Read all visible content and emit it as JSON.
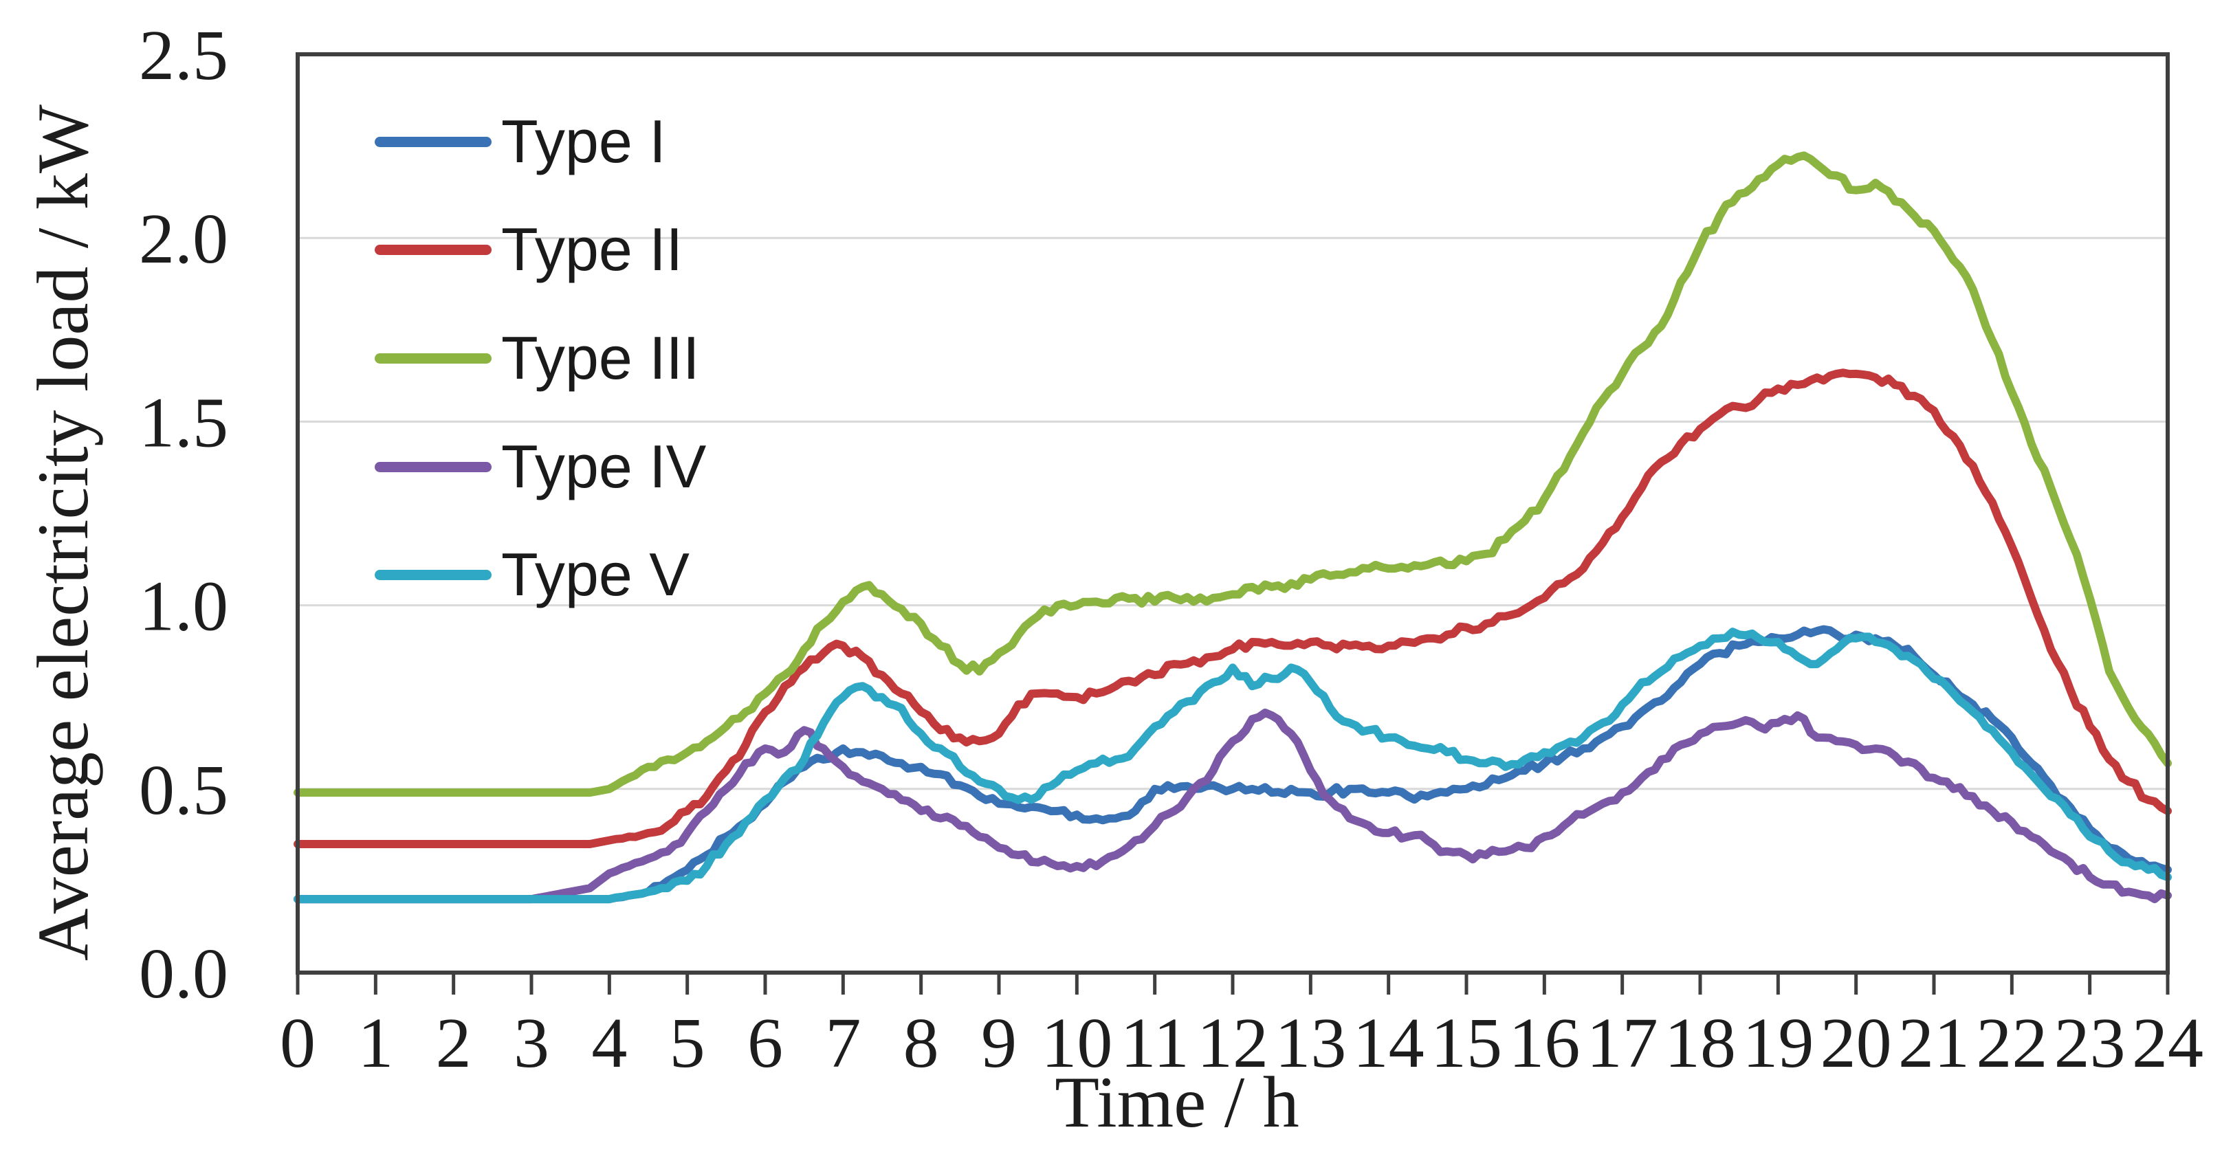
{
  "figure": {
    "y_axis_title": "Average electricity load / kW",
    "x_axis_title": "Time / h"
  },
  "styling": {
    "background": "#ffffff",
    "frame_color": "#3f3f3f",
    "grid_color": "#d9d9d9",
    "tick_color": "#3f3f3f",
    "text_color": "#1d1d1d"
  },
  "chart_data": {
    "type": "line",
    "title": "",
    "xlabel": "Time / h",
    "ylabel": "Average electricity load / kW",
    "xlim": [
      0,
      24
    ],
    "ylim": [
      0,
      2.5
    ],
    "x_ticks": [
      0,
      1,
      2,
      3,
      4,
      5,
      6,
      7,
      8,
      9,
      10,
      11,
      12,
      13,
      14,
      15,
      16,
      17,
      18,
      19,
      20,
      21,
      22,
      23,
      24
    ],
    "y_ticks": [
      {
        "v": 0.0,
        "label": "0.0"
      },
      {
        "v": 0.5,
        "label": "0.5"
      },
      {
        "v": 1.0,
        "label": "1.0"
      },
      {
        "v": 1.5,
        "label": "1.5"
      },
      {
        "v": 2.0,
        "label": "2.0"
      },
      {
        "v": 2.5,
        "label": "2.5"
      }
    ],
    "grid": "horizontal",
    "legend_position": "upper-left-inside",
    "x": [
      0,
      0.25,
      0.5,
      0.75,
      1,
      1.25,
      1.5,
      1.75,
      2,
      2.25,
      2.5,
      2.75,
      3,
      3.25,
      3.5,
      3.75,
      4,
      4.25,
      4.5,
      4.75,
      5,
      5.25,
      5.5,
      5.75,
      6,
      6.25,
      6.5,
      6.75,
      7,
      7.25,
      7.5,
      7.75,
      8,
      8.25,
      8.5,
      8.75,
      9,
      9.25,
      9.5,
      9.75,
      10,
      10.25,
      10.5,
      10.75,
      11,
      11.25,
      11.5,
      11.75,
      12,
      12.25,
      12.5,
      12.75,
      13,
      13.25,
      13.5,
      13.75,
      14,
      14.25,
      14.5,
      14.75,
      15,
      15.25,
      15.5,
      15.75,
      16,
      16.25,
      16.5,
      16.75,
      17,
      17.25,
      17.5,
      17.75,
      18,
      18.25,
      18.5,
      18.75,
      19,
      19.25,
      19.5,
      19.75,
      20,
      20.25,
      20.5,
      20.75,
      21,
      21.25,
      21.5,
      21.75,
      22,
      22.25,
      22.5,
      22.75,
      23,
      23.25,
      23.5,
      23.75,
      24
    ],
    "series": [
      {
        "name": "Type I",
        "color": "#3a72b6",
        "values": [
          0.2,
          0.2,
          0.2,
          0.2,
          0.2,
          0.2,
          0.2,
          0.2,
          0.2,
          0.2,
          0.2,
          0.2,
          0.2,
          0.2,
          0.2,
          0.2,
          0.2,
          0.21,
          0.22,
          0.25,
          0.28,
          0.32,
          0.37,
          0.41,
          0.46,
          0.52,
          0.56,
          0.58,
          0.61,
          0.6,
          0.59,
          0.57,
          0.56,
          0.54,
          0.51,
          0.48,
          0.46,
          0.45,
          0.45,
          0.44,
          0.43,
          0.42,
          0.42,
          0.44,
          0.5,
          0.5,
          0.5,
          0.51,
          0.5,
          0.5,
          0.49,
          0.5,
          0.49,
          0.49,
          0.5,
          0.49,
          0.49,
          0.48,
          0.48,
          0.49,
          0.5,
          0.51,
          0.53,
          0.55,
          0.57,
          0.59,
          0.61,
          0.64,
          0.67,
          0.71,
          0.74,
          0.79,
          0.84,
          0.87,
          0.89,
          0.9,
          0.91,
          0.92,
          0.93,
          0.92,
          0.92,
          0.91,
          0.89,
          0.86,
          0.81,
          0.77,
          0.73,
          0.69,
          0.64,
          0.57,
          0.51,
          0.45,
          0.39,
          0.34,
          0.31,
          0.29,
          0.28
        ]
      },
      {
        "name": "Type II",
        "color": "#c23a3c",
        "values": [
          0.35,
          0.35,
          0.35,
          0.35,
          0.35,
          0.35,
          0.35,
          0.35,
          0.35,
          0.35,
          0.35,
          0.35,
          0.35,
          0.35,
          0.35,
          0.35,
          0.36,
          0.37,
          0.38,
          0.4,
          0.44,
          0.48,
          0.55,
          0.62,
          0.71,
          0.78,
          0.83,
          0.87,
          0.89,
          0.86,
          0.81,
          0.76,
          0.71,
          0.66,
          0.64,
          0.63,
          0.65,
          0.73,
          0.76,
          0.76,
          0.75,
          0.76,
          0.78,
          0.79,
          0.81,
          0.84,
          0.85,
          0.86,
          0.88,
          0.9,
          0.9,
          0.89,
          0.9,
          0.89,
          0.89,
          0.89,
          0.89,
          0.9,
          0.91,
          0.92,
          0.94,
          0.95,
          0.97,
          0.99,
          1.02,
          1.06,
          1.1,
          1.17,
          1.24,
          1.32,
          1.39,
          1.44,
          1.48,
          1.52,
          1.54,
          1.56,
          1.59,
          1.6,
          1.62,
          1.63,
          1.63,
          1.62,
          1.6,
          1.57,
          1.53,
          1.46,
          1.38,
          1.28,
          1.16,
          1.02,
          0.88,
          0.77,
          0.67,
          0.58,
          0.52,
          0.47,
          0.44
        ]
      },
      {
        "name": "Type III",
        "color": "#8cb440",
        "values": [
          0.49,
          0.49,
          0.49,
          0.49,
          0.49,
          0.49,
          0.49,
          0.49,
          0.49,
          0.49,
          0.49,
          0.49,
          0.49,
          0.49,
          0.49,
          0.49,
          0.5,
          0.53,
          0.56,
          0.58,
          0.6,
          0.63,
          0.67,
          0.71,
          0.76,
          0.81,
          0.88,
          0.95,
          1.01,
          1.05,
          1.03,
          0.99,
          0.95,
          0.89,
          0.84,
          0.82,
          0.87,
          0.92,
          0.97,
          1.0,
          1.0,
          1.01,
          1.02,
          1.02,
          1.01,
          1.02,
          1.01,
          1.02,
          1.03,
          1.05,
          1.05,
          1.06,
          1.07,
          1.08,
          1.09,
          1.1,
          1.1,
          1.1,
          1.11,
          1.11,
          1.12,
          1.14,
          1.18,
          1.23,
          1.29,
          1.37,
          1.47,
          1.56,
          1.63,
          1.7,
          1.76,
          1.88,
          1.98,
          2.06,
          2.12,
          2.16,
          2.2,
          2.22,
          2.2,
          2.17,
          2.13,
          2.15,
          2.1,
          2.06,
          2.02,
          1.94,
          1.86,
          1.72,
          1.58,
          1.44,
          1.32,
          1.18,
          1.02,
          0.82,
          0.72,
          0.65,
          0.57
        ]
      },
      {
        "name": "Type IV",
        "color": "#7b59a6",
        "values": [
          0.2,
          0.2,
          0.2,
          0.2,
          0.2,
          0.2,
          0.2,
          0.2,
          0.2,
          0.2,
          0.2,
          0.2,
          0.2,
          0.21,
          0.22,
          0.23,
          0.27,
          0.29,
          0.31,
          0.33,
          0.38,
          0.44,
          0.5,
          0.57,
          0.61,
          0.6,
          0.66,
          0.61,
          0.56,
          0.52,
          0.5,
          0.47,
          0.44,
          0.42,
          0.4,
          0.37,
          0.34,
          0.32,
          0.3,
          0.29,
          0.29,
          0.29,
          0.32,
          0.36,
          0.4,
          0.44,
          0.5,
          0.55,
          0.63,
          0.69,
          0.7,
          0.65,
          0.55,
          0.47,
          0.42,
          0.4,
          0.38,
          0.37,
          0.36,
          0.33,
          0.32,
          0.32,
          0.33,
          0.34,
          0.37,
          0.4,
          0.43,
          0.46,
          0.49,
          0.53,
          0.58,
          0.62,
          0.65,
          0.67,
          0.68,
          0.67,
          0.68,
          0.7,
          0.64,
          0.63,
          0.62,
          0.61,
          0.59,
          0.57,
          0.53,
          0.5,
          0.48,
          0.44,
          0.41,
          0.37,
          0.33,
          0.3,
          0.26,
          0.24,
          0.22,
          0.21,
          0.21
        ]
      },
      {
        "name": "Type V",
        "color": "#2fa8c5",
        "values": [
          0.2,
          0.2,
          0.2,
          0.2,
          0.2,
          0.2,
          0.2,
          0.2,
          0.2,
          0.2,
          0.2,
          0.2,
          0.2,
          0.2,
          0.2,
          0.2,
          0.2,
          0.21,
          0.22,
          0.23,
          0.25,
          0.29,
          0.35,
          0.41,
          0.47,
          0.53,
          0.58,
          0.68,
          0.75,
          0.78,
          0.75,
          0.72,
          0.65,
          0.61,
          0.56,
          0.52,
          0.5,
          0.47,
          0.48,
          0.52,
          0.55,
          0.57,
          0.58,
          0.61,
          0.67,
          0.71,
          0.74,
          0.79,
          0.83,
          0.78,
          0.8,
          0.83,
          0.79,
          0.72,
          0.68,
          0.66,
          0.64,
          0.62,
          0.61,
          0.6,
          0.58,
          0.57,
          0.56,
          0.58,
          0.6,
          0.62,
          0.64,
          0.68,
          0.73,
          0.79,
          0.82,
          0.86,
          0.89,
          0.91,
          0.92,
          0.91,
          0.9,
          0.86,
          0.84,
          0.88,
          0.91,
          0.9,
          0.88,
          0.85,
          0.8,
          0.76,
          0.71,
          0.66,
          0.6,
          0.54,
          0.48,
          0.43,
          0.37,
          0.33,
          0.3,
          0.28,
          0.26
        ]
      }
    ]
  }
}
